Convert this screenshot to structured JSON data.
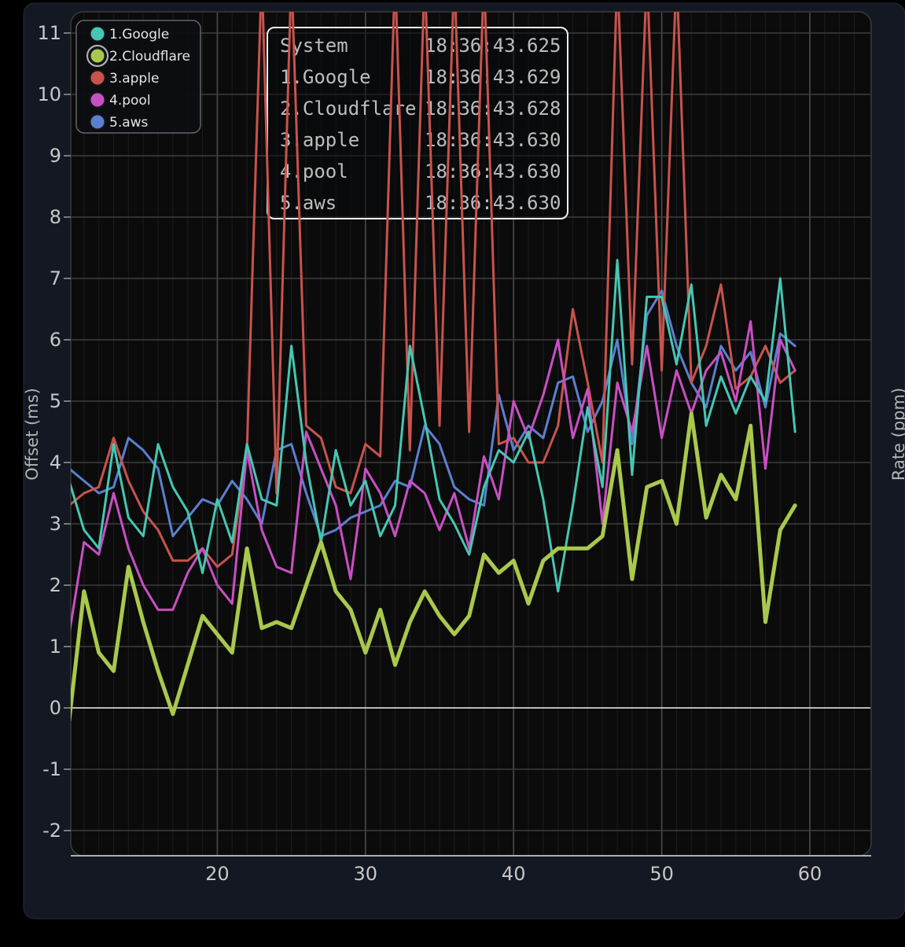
{
  "colors": {
    "page_bg": "#000000",
    "panel_bg": "#141823",
    "panel_border": "#262c38",
    "plot_bg": "#0b0b0b",
    "plot_border": "#3a3a3a",
    "grid_minor_v": "#1a1a1a",
    "grid_major_v": "#4b4b4b",
    "grid_h": "#3e3e3e",
    "zero_line": "#d2d2d2",
    "axis_bottom": "#b0b0b0",
    "tick": "#999999",
    "tick_label": "#c7c7c7",
    "axis_label": "#b3b3b3",
    "tooltip_border": "#f0f0f0",
    "tooltip_bg": "#0a0b0d",
    "tooltip_text": "#bdbdbd",
    "legend_bg": "#0d0e11",
    "legend_border": "#61656b",
    "legend_text": "#e5e5e5",
    "legend_ring": "#aeaeae"
  },
  "tooltip": {
    "rows": [
      {
        "label": "System",
        "value": "18:36:43.625"
      },
      {
        "label": "1.Google",
        "value": "18:36:43.629"
      },
      {
        "label": "2.Cloudflare",
        "value": "18:36:43.628"
      },
      {
        "label": "3.apple",
        "value": "18:36:43.630"
      },
      {
        "label": "4.pool",
        "value": "18:36:43.630"
      },
      {
        "label": "5.aws",
        "value": "18:36:43.630"
      }
    ]
  },
  "legend": {
    "selected": "2.Cloudflare"
  },
  "chart_data": {
    "type": "line",
    "title": "",
    "xlabel": "",
    "ylabel": "Offset (ms)",
    "ylabel_right": "Rate (ppm)",
    "x_ticks": [
      20,
      30,
      40,
      50,
      60
    ],
    "y_ticks": [
      -2,
      -1,
      0,
      1,
      2,
      3,
      4,
      5,
      6,
      7,
      8,
      9,
      10,
      11
    ],
    "x_view_range": [
      10,
      64.1
    ],
    "y_view_range": [
      -2.4,
      11.4
    ],
    "zero_line_at": 0,
    "x_start": 10,
    "x_step": 1,
    "grid": "on",
    "legend_position": "top-left",
    "note_offscale": "apple values of 12 are spikes clipped above the visible y-range",
    "series": [
      {
        "name": "5.aws",
        "color": "#5b80cf",
        "width": 3,
        "selected": false,
        "values": [
          3.9,
          3.7,
          3.5,
          3.6,
          4.4,
          4.2,
          3.9,
          2.8,
          3.1,
          3.4,
          3.3,
          3.7,
          3.4,
          3.0,
          4.2,
          4.3,
          3.5,
          2.8,
          2.9,
          3.1,
          3.2,
          3.3,
          3.7,
          3.6,
          4.6,
          4.3,
          3.6,
          3.4,
          3.3,
          5.1,
          4.2,
          4.6,
          4.4,
          5.3,
          5.4,
          4.5,
          5.0,
          6.0,
          4.3,
          6.4,
          6.8,
          5.9,
          5.3,
          4.9,
          5.9,
          5.5,
          5.8,
          4.9,
          6.1,
          5.9
        ]
      },
      {
        "name": "3.apple",
        "color": "#c9534c",
        "width": 3,
        "selected": false,
        "values": [
          3.3,
          3.5,
          3.6,
          4.4,
          3.7,
          3.2,
          2.9,
          2.4,
          2.4,
          2.6,
          2.3,
          2.5,
          4.2,
          12,
          3.5,
          12,
          4.6,
          4.4,
          3.6,
          3.5,
          4.3,
          4.1,
          12,
          4.2,
          12,
          4.6,
          12,
          4.5,
          12,
          4.3,
          4.4,
          4.0,
          4.0,
          4.6,
          6.5,
          5.3,
          4.0,
          12,
          5.6,
          12,
          5.5,
          12,
          5.3,
          5.9,
          6.9,
          5.2,
          5.4,
          5.9,
          5.3,
          5.5
        ]
      },
      {
        "name": "4.pool",
        "color": "#c94fc4",
        "width": 3,
        "selected": false,
        "values": [
          1.2,
          2.7,
          2.5,
          3.5,
          2.6,
          2.0,
          1.6,
          1.6,
          2.2,
          2.6,
          2.0,
          1.7,
          4.2,
          2.9,
          2.3,
          2.2,
          4.5,
          3.9,
          3.3,
          2.1,
          3.9,
          3.5,
          2.8,
          3.7,
          3.5,
          2.9,
          3.5,
          2.6,
          4.1,
          3.4,
          5.0,
          4.4,
          5.1,
          6.0,
          4.4,
          5.2,
          3.0,
          5.3,
          4.5,
          5.9,
          4.4,
          5.5,
          4.8,
          5.5,
          5.8,
          5.0,
          6.3,
          3.9,
          6.0,
          5.5
        ]
      },
      {
        "name": "1.Google",
        "color": "#45c7b3",
        "width": 3,
        "selected": false,
        "values": [
          3.7,
          2.9,
          2.6,
          4.3,
          3.1,
          2.8,
          4.3,
          3.6,
          3.2,
          2.2,
          3.4,
          2.7,
          4.3,
          3.4,
          3.3,
          5.9,
          4.0,
          2.7,
          4.2,
          3.3,
          3.7,
          2.8,
          3.3,
          5.9,
          4.7,
          3.4,
          3.0,
          2.5,
          3.6,
          4.2,
          4.0,
          4.5,
          3.4,
          1.9,
          3.3,
          4.9,
          3.6,
          7.3,
          3.8,
          6.7,
          6.7,
          5.6,
          6.9,
          4.6,
          5.4,
          4.8,
          5.4,
          5.0,
          7.0,
          4.5
        ]
      },
      {
        "name": "2.Cloudflare",
        "color": "#a9c84d",
        "width": 5,
        "selected": true,
        "values": [
          -0.2,
          1.9,
          0.9,
          0.6,
          2.3,
          1.4,
          0.6,
          -0.1,
          0.7,
          1.5,
          1.2,
          0.9,
          2.6,
          1.3,
          1.4,
          1.3,
          2.0,
          2.7,
          1.9,
          1.6,
          0.9,
          1.6,
          0.7,
          1.4,
          1.9,
          1.5,
          1.2,
          1.5,
          2.5,
          2.2,
          2.4,
          1.7,
          2.4,
          2.6,
          2.6,
          2.6,
          2.8,
          4.2,
          2.1,
          3.6,
          3.7,
          3.0,
          4.8,
          3.1,
          3.8,
          3.4,
          4.6,
          1.4,
          2.9,
          3.3
        ]
      }
    ],
    "legend_order": [
      "1.Google",
      "2.Cloudflare",
      "3.apple",
      "4.pool",
      "5.aws"
    ]
  }
}
